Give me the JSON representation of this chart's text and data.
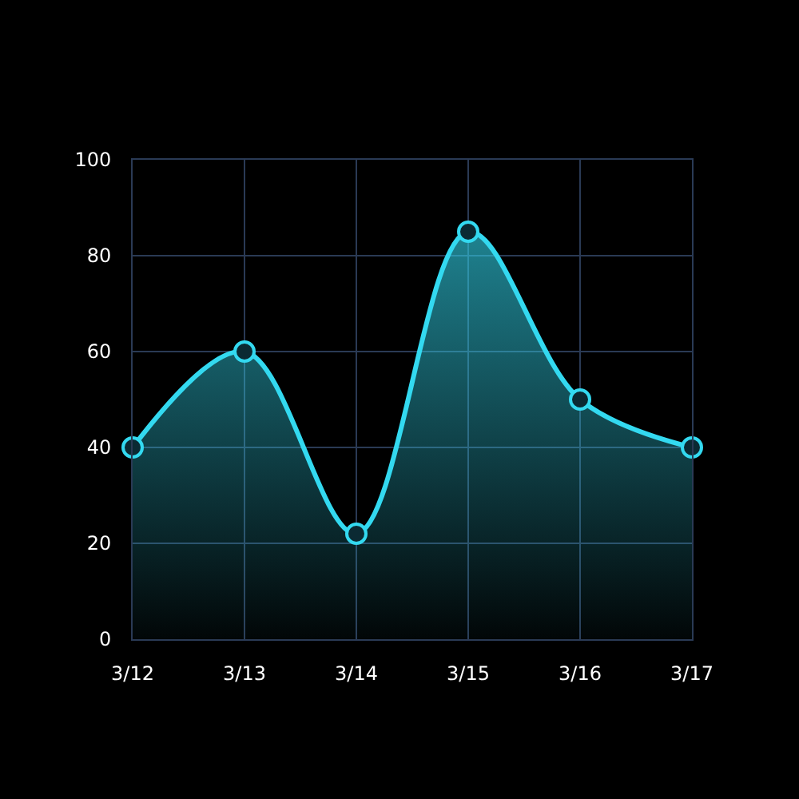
{
  "chart_data": {
    "type": "area",
    "categories": [
      "3/12",
      "3/13",
      "3/14",
      "3/15",
      "3/16",
      "3/17"
    ],
    "series": [
      {
        "color": "#33d9f0",
        "values": [
          40,
          60,
          22,
          85,
          50,
          40
        ]
      }
    ],
    "ylim": [
      0,
      100
    ],
    "yticks": [
      0,
      20,
      40,
      60,
      80,
      100
    ],
    "grid": true,
    "marker": "circle",
    "line_style": "solid"
  }
}
